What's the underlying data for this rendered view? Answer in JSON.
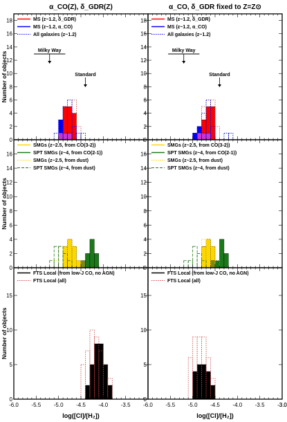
{
  "figure": {
    "col_titles": [
      "α_CO(Z), δ_GDR(Z)",
      "α_CO, δ_GDR fixed to Z=Z⊙"
    ],
    "y_label": "Number of objects",
    "x_label": "log([CI]/[H₂])",
    "x_ticks": [
      "-6.0",
      "-5.5",
      "-5.0",
      "-4.5",
      "-4.0",
      "-3.5",
      "-3.0"
    ],
    "colors": {
      "red": "#ff0000",
      "blue": "#0000ff",
      "magenta": "#cc33cc",
      "yellow": "#ffd700",
      "green": "#1a7a1a",
      "olive": "#7a8a1a",
      "black": "#000000",
      "dotted_red": "#d04040"
    }
  },
  "chart_data": [
    {
      "type": "bar",
      "panel": "top",
      "ylim": [
        0,
        19
      ],
      "y_ticks": [
        "0",
        "2",
        "4",
        "6",
        "8",
        "10",
        "12",
        "14",
        "16",
        "18"
      ],
      "xlim": [
        -6.0,
        -3.0
      ],
      "bin_width": 0.1,
      "legend": [
        {
          "label": "MS (z~1.2, δ_GDR)",
          "style": "solid",
          "color": "#ff0000"
        },
        {
          "label": "MS (z~1.2, α_CO)",
          "style": "solid",
          "color": "#0000ff"
        },
        {
          "label": "All galaxies (z~1.2)",
          "style": "dotted",
          "color": "#0000ff"
        }
      ],
      "references": {
        "milky_way": {
          "label": "Milky Way",
          "range": [
            -5.55,
            -4.85
          ],
          "arrow": -5.2
        },
        "standard": {
          "label": "Standard",
          "arrow": -4.4
        }
      },
      "left": {
        "bars": [
          {
            "color": "#0000ff",
            "bins": {
              "-5.0": 3,
              "-4.9": 2,
              "-4.8": 4
            }
          },
          {
            "color": "#ff0000",
            "bins": {
              "-4.9": 5,
              "-4.8": 5,
              "-4.7": 4
            }
          },
          {
            "color": "#cc33cc",
            "bins": {
              "-5.0": 1,
              "-4.9": 1,
              "-4.8": 1
            }
          }
        ],
        "outlines": [
          {
            "color": "#d04040",
            "bins": {
              "-5.0": 1,
              "-4.9": 5,
              "-4.8": 6,
              "-4.7": 6,
              "-4.6": 2
            }
          },
          {
            "color": "#0000ff",
            "bins": {
              "-5.1": 1,
              "-5.0": 3,
              "-4.9": 5,
              "-4.8": 6,
              "-4.7": 2,
              "-4.6": 1,
              "-4.5": 1
            }
          }
        ]
      },
      "right": {
        "bars": [
          {
            "color": "#0000ff",
            "bins": {
              "-5.0": 1,
              "-4.9": 2,
              "-4.8": 1
            }
          },
          {
            "color": "#ff0000",
            "bins": {
              "-4.8": 3,
              "-4.7": 5,
              "-4.6": 5
            }
          },
          {
            "color": "#cc33cc",
            "bins": {
              "-4.9": 1,
              "-4.8": 1,
              "-4.7": 1
            }
          }
        ],
        "outlines": [
          {
            "color": "#d04040",
            "bins": {
              "-4.9": 1,
              "-4.8": 5,
              "-4.7": 6,
              "-4.6": 6,
              "-4.5": 2
            }
          },
          {
            "color": "#0000ff",
            "bins": {
              "-5.0": 1,
              "-4.9": 2,
              "-4.8": 4,
              "-4.7": 6,
              "-4.6": 2,
              "-4.3": 1,
              "-4.2": 1
            }
          }
        ]
      }
    },
    {
      "type": "bar",
      "panel": "middle",
      "ylim": [
        0,
        18
      ],
      "y_ticks": [
        "0",
        "2",
        "4",
        "6",
        "8",
        "10",
        "12",
        "14",
        "16"
      ],
      "xlim": [
        -6.0,
        -3.0
      ],
      "bin_width": 0.1,
      "legend": [
        {
          "label": "SMGs (z~2.5, from CO(3-2))",
          "style": "solid",
          "color": "#ffd700"
        },
        {
          "label": "SPT SMGs (z~4, from CO(2-1))",
          "style": "solid",
          "color": "#1a7a1a"
        },
        {
          "label": "SMGs (z~2.5, from dust)",
          "style": "dotted",
          "color": "#ffd700"
        },
        {
          "label": "SPT SMGs (z~4, from dust)",
          "style": "dashed",
          "color": "#1a7a1a"
        }
      ],
      "left": {
        "bars": [
          {
            "color": "#ffd700",
            "bins": {
              "-4.9": 3,
              "-4.8": 4,
              "-4.7": 3,
              "-4.6": 1
            }
          },
          {
            "color": "#1a7a1a",
            "bins": {
              "-4.4": 2,
              "-4.3": 4,
              "-4.2": 2
            }
          },
          {
            "color": "#7a8a1a",
            "bins": {
              "-4.5": 1
            }
          }
        ],
        "outlines": [
          {
            "color": "#ffd700",
            "style": "dotted",
            "bins": {
              "-5.1": 1,
              "-5.0": 3,
              "-4.9": 3,
              "-4.8": 4,
              "-4.7": 3,
              "-4.6": 1
            }
          },
          {
            "color": "#1a7a1a",
            "style": "dashed",
            "bins": {
              "-5.2": 1,
              "-5.1": 3,
              "-5.0": 3,
              "-4.9": 2,
              "-4.8": 1
            }
          }
        ]
      },
      "right": {
        "bars": [
          {
            "color": "#ffd700",
            "bins": {
              "-4.8": 3,
              "-4.7": 4,
              "-4.6": 3,
              "-4.5": 1
            }
          },
          {
            "color": "#1a7a1a",
            "bins": {
              "-4.5": 1,
              "-4.4": 4,
              "-4.3": 2
            }
          },
          {
            "color": "#7a8a1a",
            "bins": {
              "-4.6": 1
            }
          }
        ],
        "outlines": [
          {
            "color": "#ffd700",
            "style": "dotted",
            "bins": {
              "-4.9": 2,
              "-4.8": 4,
              "-4.7": 4,
              "-4.6": 3,
              "-4.5": 1
            }
          },
          {
            "color": "#1a7a1a",
            "style": "dashed",
            "bins": {
              "-5.2": 1,
              "-5.1": 1,
              "-5.0": 3,
              "-4.9": 2,
              "-4.8": 1
            }
          }
        ]
      }
    },
    {
      "type": "bar",
      "panel": "bottom",
      "ylim": [
        0,
        19
      ],
      "y_ticks": [
        "0",
        "5",
        "10",
        "15"
      ],
      "xlim": [
        -6.0,
        -3.0
      ],
      "bin_width": 0.1,
      "legend": [
        {
          "label": "FTS Local (from low-J CO, no AGN)",
          "style": "solid",
          "color": "#000000"
        },
        {
          "label": "FTS Local (all)",
          "style": "dotted",
          "color": "#d04040"
        }
      ],
      "left": {
        "bars": [
          {
            "color": "#000000",
            "bins": {
              "-4.4": 2,
              "-4.3": 5,
              "-4.2": 8,
              "-4.1": 8,
              "-4.0": 5,
              "-3.9": 2
            }
          }
        ],
        "outlines": [
          {
            "color": "#d04040",
            "bins": {
              "-4.5": 5,
              "-4.4": 7,
              "-4.3": 10,
              "-4.2": 9,
              "-4.1": 7,
              "-4.0": 5,
              "-3.9": 3
            }
          }
        ]
      },
      "right": {
        "bars": [
          {
            "color": "#000000",
            "bins": {
              "-5.0": 4,
              "-4.9": 5,
              "-4.8": 5,
              "-4.7": 4,
              "-4.6": 2
            }
          }
        ],
        "outlines": [
          {
            "color": "#d04040",
            "bins": {
              "-5.1": 6,
              "-5.0": 9,
              "-4.9": 9,
              "-4.8": 9,
              "-4.7": 6,
              "-4.6": 3
            }
          }
        ]
      }
    }
  ]
}
